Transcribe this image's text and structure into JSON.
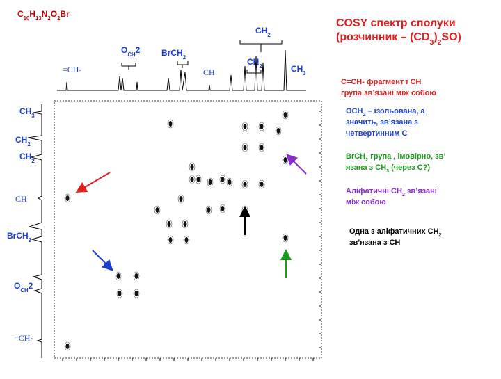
{
  "formula": [
    "C",
    "10",
    "H",
    "13",
    "N",
    "2",
    "O",
    "2",
    "Br"
  ],
  "title": {
    "line1": [
      "COSY спектр сполуки"
    ],
    "line2": [
      "(розчинник – (CD",
      "3",
      ")",
      "2",
      "SO)"
    ]
  },
  "top_labels": [
    [
      "=CH-"
    ],
    [
      "O",
      "CH",
      "2"
    ],
    [
      "BrCH",
      "2"
    ],
    [
      "CH"
    ],
    [
      "CH",
      "2"
    ],
    [
      "CH",
      "2"
    ],
    [
      "CH",
      "3"
    ]
  ],
  "left_labels": [
    [
      "CH",
      "3"
    ],
    [
      "CH",
      "2"
    ],
    [
      "CH",
      "2"
    ],
    [
      "CH"
    ],
    [
      "BrCH",
      "2"
    ],
    [
      "O",
      "CH",
      "2"
    ],
    [
      "=CH-"
    ]
  ],
  "notes": [
    {
      "lines": [
        [
          "C=CH- фрагмент і CH"
        ],
        [
          "група зв’язані між собою"
        ]
      ]
    },
    {
      "lines": [
        [
          "OCH",
          "2",
          " – ізольована, а"
        ],
        [
          "значить, зв’язана з"
        ],
        [
          "четвертинним С"
        ]
      ]
    },
    {
      "lines": [
        [
          "BrCH",
          "2",
          " група , імовірно, зв’"
        ],
        [
          "язана з CH",
          "3",
          " (через С?)"
        ]
      ]
    },
    {
      "lines": [
        [
          "Аліфатичні CH",
          "2",
          " зв’язані"
        ],
        [
          "між собою"
        ]
      ]
    },
    {
      "lines": [
        [
          "Одна з аліфатичних CH",
          "2"
        ],
        [
          "зв’язана з CH"
        ]
      ]
    }
  ]
}
